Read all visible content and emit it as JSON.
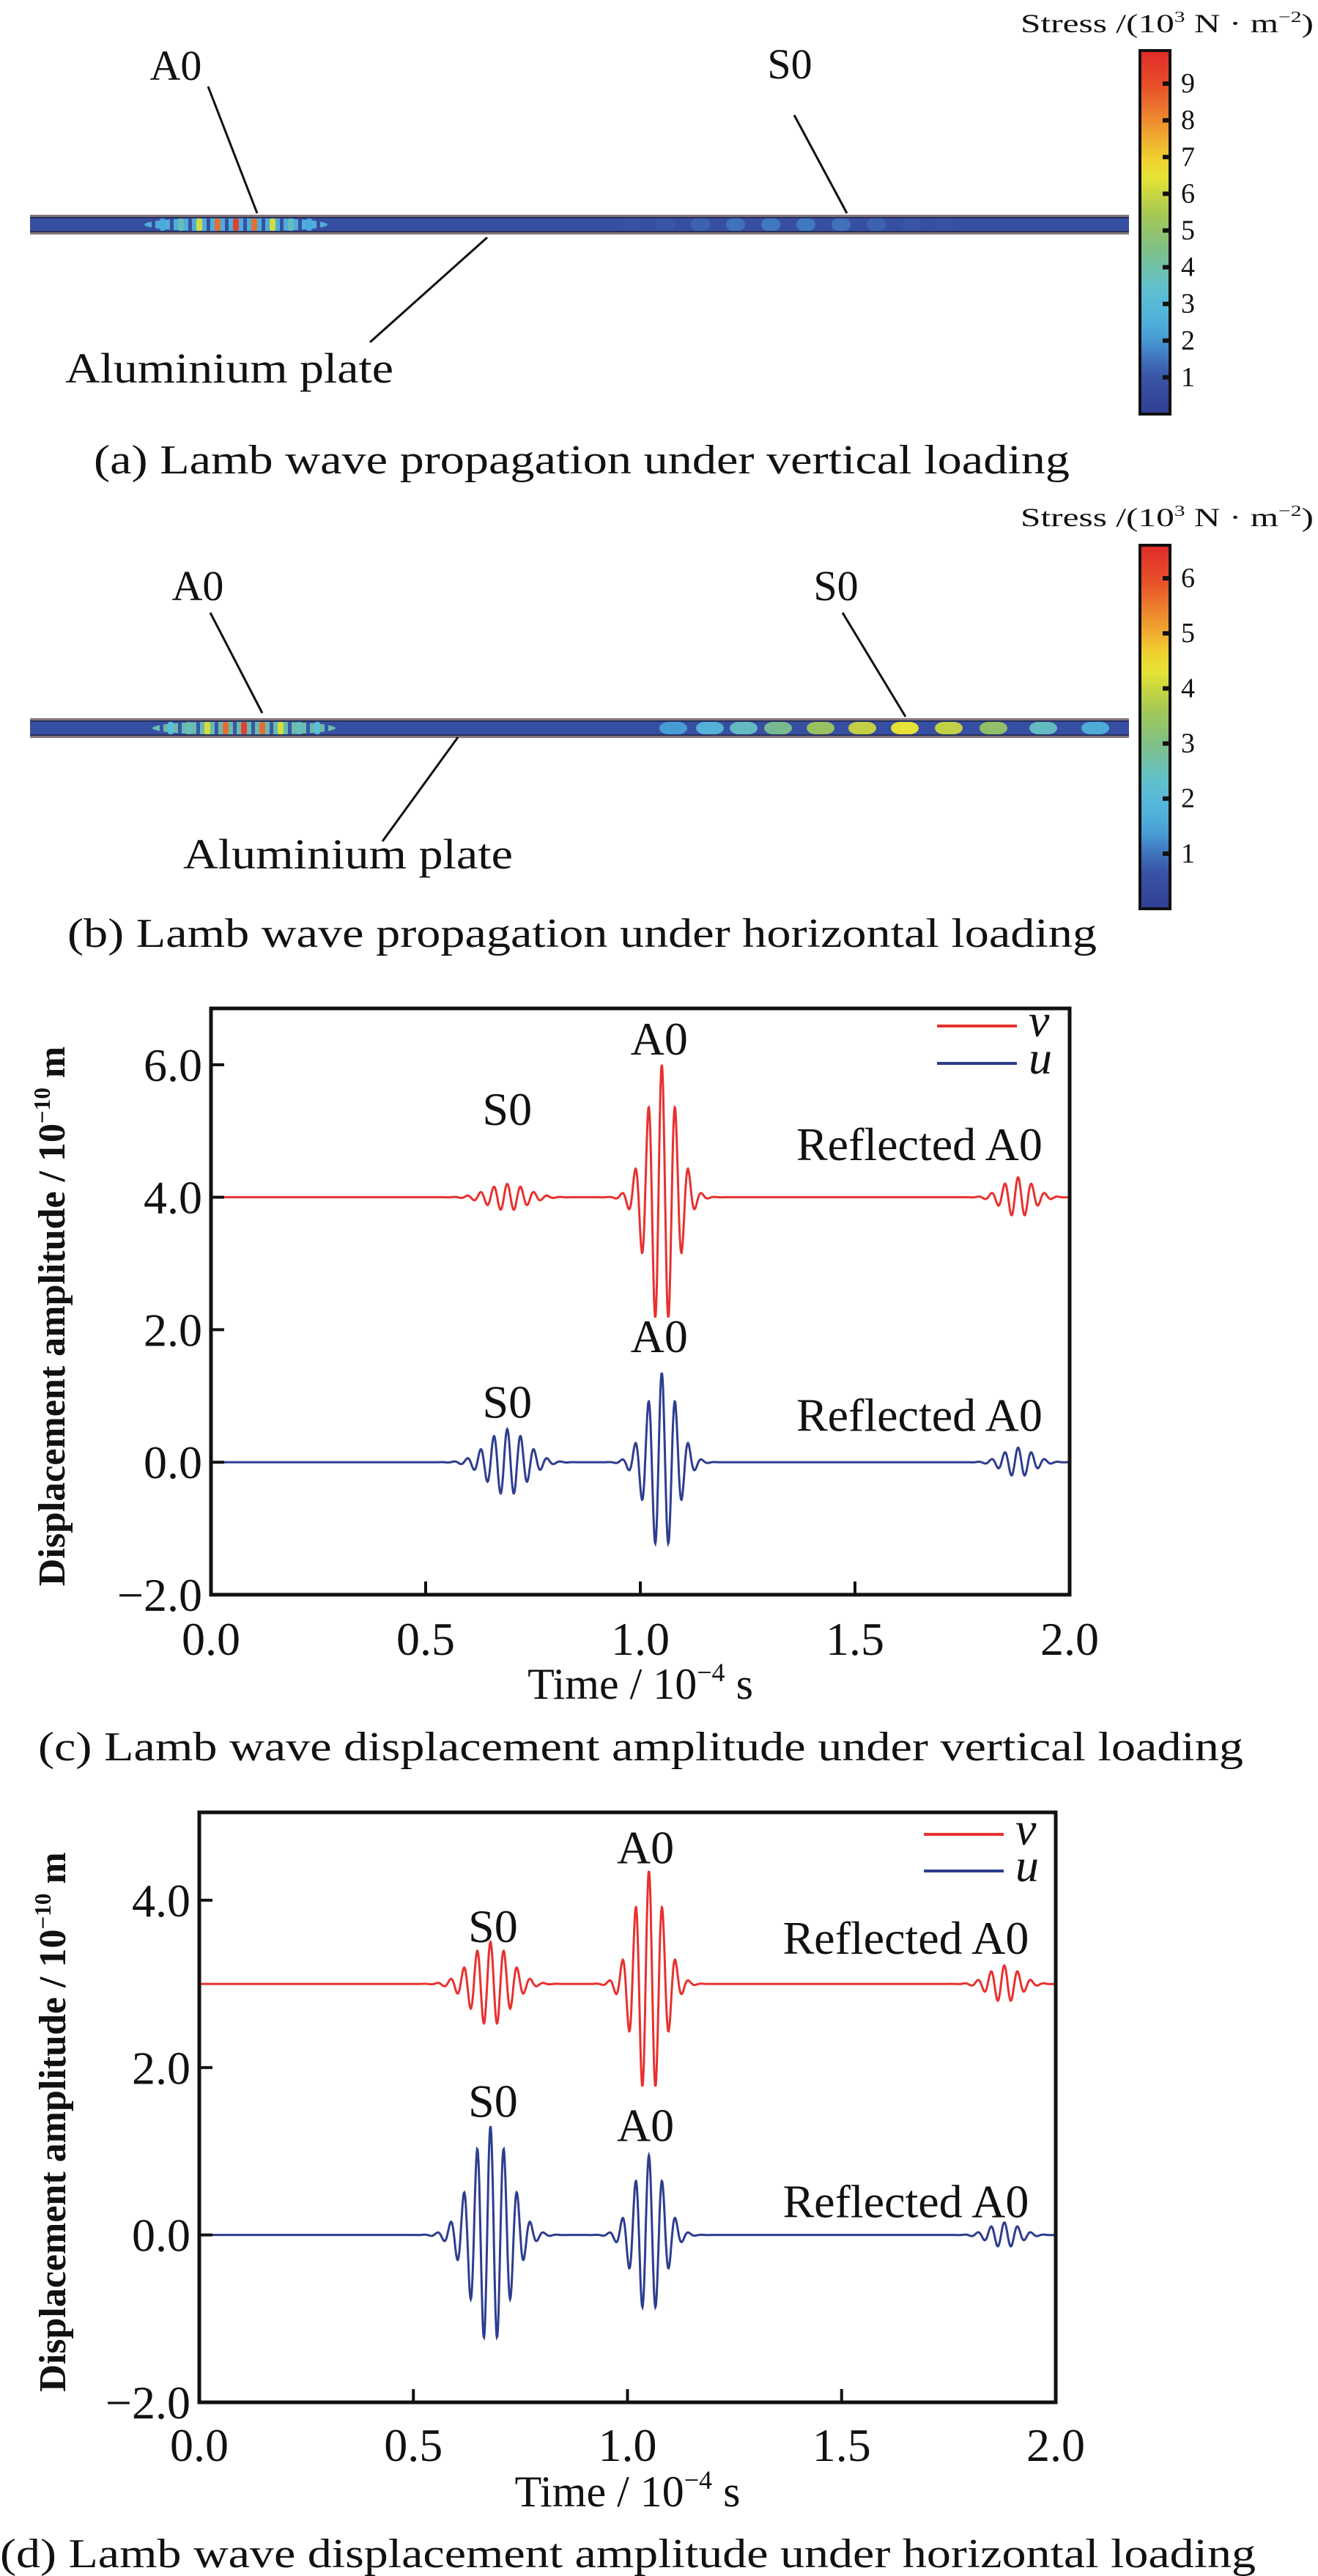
{
  "figure": {
    "panels": [
      {
        "id": "a",
        "caption": "(a) Lamb wave propagation under vertical loading",
        "colorbar": {
          "title_prefix": "Stress /(10",
          "title_exp1": "3",
          "title_mid": " N · m",
          "title_exp2": "−2",
          "title_suffix": ")",
          "ticks": [
            "1",
            "2",
            "3",
            "4",
            "5",
            "6",
            "7",
            "8",
            "9"
          ],
          "max": 9.9
        },
        "labels": {
          "a0": "A0",
          "s0": "S0",
          "plate": "Aluminium plate"
        }
      },
      {
        "id": "b",
        "caption": "(b) Lamb wave propagation under horizontal loading",
        "colorbar": {
          "title_prefix": "Stress /(10",
          "title_exp1": "3",
          "title_mid": " N · m",
          "title_exp2": "−2",
          "title_suffix": ")",
          "ticks": [
            "1",
            "2",
            "3",
            "4",
            "5",
            "6"
          ],
          "max": 6.6
        },
        "labels": {
          "a0": "A0",
          "s0": "S0",
          "plate": "Aluminium plate"
        }
      }
    ],
    "colormap": [
      "#313f92",
      "#3a55a8",
      "#4aa8dc",
      "#5cc0d8",
      "#7cc08c",
      "#a8c850",
      "#f0e830",
      "#f0a030",
      "#e8552a",
      "#e02a2a"
    ]
  },
  "chart_data": [
    {
      "type": "line",
      "caption": "(c) Lamb wave displacement amplitude under vertical loading",
      "xlabel": {
        "text": "Time / 10",
        "exp": "−4",
        "unit": " s"
      },
      "ylabel": {
        "text": "Displacement amplitude / 10",
        "exp": "−10",
        "unit": " m"
      },
      "xlim": [
        0,
        2.0
      ],
      "ylim": [
        -2.0,
        6.85
      ],
      "xticks": [
        0,
        0.5,
        1.0,
        1.5,
        2.0
      ],
      "xtick_labels": [
        "0.0",
        "0.5",
        "1.0",
        "1.5",
        "2.0"
      ],
      "yticks": [
        -2,
        0,
        2,
        4,
        6
      ],
      "ytick_labels": [
        "−2.0",
        "0.0",
        "2.0",
        "4.0",
        "6.0"
      ],
      "grid": false,
      "legend": "top-right",
      "series": [
        {
          "name": "v",
          "color": "#e8312f",
          "baseline": 4.0,
          "packets": [
            {
              "mode": "S0",
              "center": 0.69,
              "amplitude": 0.2
            },
            {
              "mode": "A0",
              "center": 1.05,
              "amplitude": 2.0
            },
            {
              "mode": "Reflected A0",
              "center": 1.88,
              "amplitude": 0.3
            }
          ]
        },
        {
          "name": "u",
          "color": "#2e3d8f",
          "baseline": 0.0,
          "packets": [
            {
              "mode": "S0",
              "center": 0.69,
              "amplitude": 0.5
            },
            {
              "mode": "A0",
              "center": 1.05,
              "amplitude": 1.35
            },
            {
              "mode": "Reflected A0",
              "center": 1.88,
              "amplitude": 0.22
            }
          ]
        }
      ],
      "annotations": [
        {
          "text": "A0",
          "x": 1.044,
          "y": 6.39
        },
        {
          "text": "S0",
          "x": 0.69,
          "y": 5.33
        },
        {
          "text": "Reflected A0",
          "x": 1.65,
          "y": 4.8
        },
        {
          "text": "A0",
          "x": 1.044,
          "y": 1.9
        },
        {
          "text": "S0",
          "x": 0.69,
          "y": 0.91
        },
        {
          "text": "Reflected A0",
          "x": 1.65,
          "y": 0.71
        }
      ]
    },
    {
      "type": "line",
      "caption": "(d) Lamb wave displacement amplitude under horizontal loading",
      "xlabel": {
        "text": "Time / 10",
        "exp": "−4",
        "unit": " s"
      },
      "ylabel": {
        "text": "Displacement amplitude / 10",
        "exp": "−10",
        "unit": " m"
      },
      "xlim": [
        0,
        2.0
      ],
      "ylim": [
        -2.0,
        5.05
      ],
      "xticks": [
        0,
        0.5,
        1.0,
        1.5,
        2.0
      ],
      "xtick_labels": [
        "0.0",
        "0.5",
        "1.0",
        "1.5",
        "2.0"
      ],
      "yticks": [
        -2,
        0,
        2,
        4
      ],
      "ytick_labels": [
        "−2.0",
        "0.0",
        "2.0",
        "4.0"
      ],
      "grid": false,
      "legend": "top-right",
      "series": [
        {
          "name": "v",
          "color": "#e8312f",
          "baseline": 3.0,
          "packets": [
            {
              "mode": "S0",
              "center": 0.68,
              "amplitude": 0.5
            },
            {
              "mode": "A0",
              "center": 1.05,
              "amplitude": 1.35
            },
            {
              "mode": "Reflected A0",
              "center": 1.88,
              "amplitude": 0.22
            }
          ]
        },
        {
          "name": "u",
          "color": "#2e3d8f",
          "baseline": 0.0,
          "packets": [
            {
              "mode": "S0",
              "center": 0.68,
              "amplitude": 1.3
            },
            {
              "mode": "A0",
              "center": 1.05,
              "amplitude": 0.95
            },
            {
              "mode": "Reflected A0",
              "center": 1.88,
              "amplitude": 0.15
            }
          ]
        }
      ],
      "annotations": [
        {
          "text": "A0",
          "x": 1.042,
          "y": 4.63
        },
        {
          "text": "S0",
          "x": 0.686,
          "y": 3.69
        },
        {
          "text": "Reflected A0",
          "x": 1.65,
          "y": 3.55
        },
        {
          "text": "S0",
          "x": 0.686,
          "y": 1.6
        },
        {
          "text": "A0",
          "x": 1.042,
          "y": 1.31
        },
        {
          "text": "Reflected A0",
          "x": 1.65,
          "y": 0.4
        }
      ]
    }
  ]
}
